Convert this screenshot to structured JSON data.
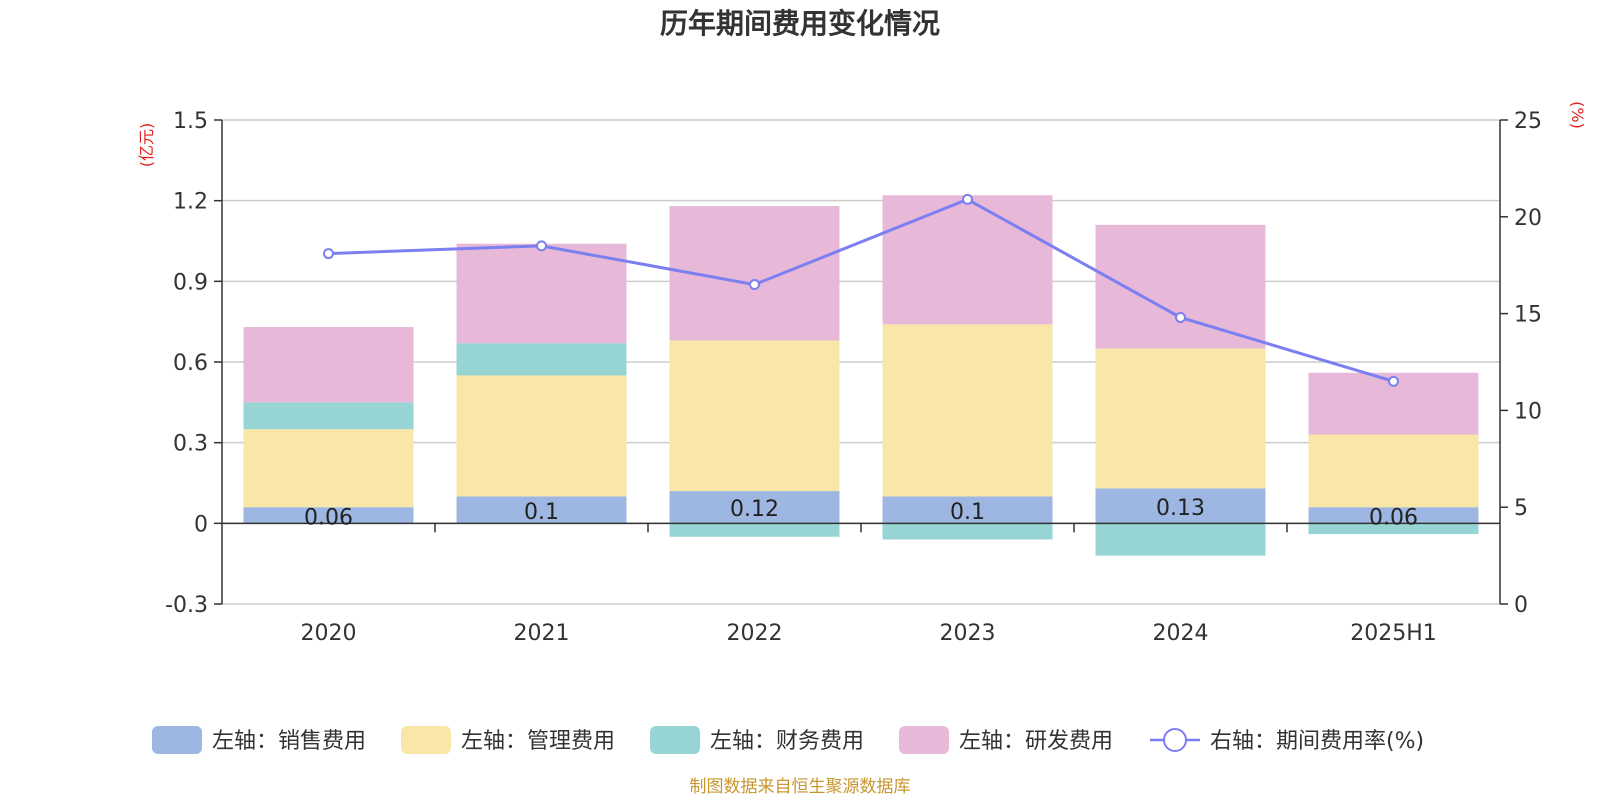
{
  "chart_data": {
    "type": "bar",
    "title": "历年期间费用变化情况",
    "categories": [
      "2020",
      "2021",
      "2022",
      "2023",
      "2024",
      "2025H1"
    ],
    "left_axis": {
      "unit": "(亿元)",
      "ylim": [
        -0.3,
        1.5
      ],
      "ticks": [
        "-0.3",
        "0",
        "0.3",
        "0.6",
        "0.9",
        "1.2",
        "1.5"
      ]
    },
    "right_axis": {
      "unit": "(%)",
      "ylim": [
        0,
        25
      ],
      "ticks": [
        "0",
        "5",
        "10",
        "15",
        "20",
        "25"
      ]
    },
    "series": [
      {
        "name": "左轴：销售费用",
        "axis": "left",
        "kind": "bar",
        "color": "#9db7e2",
        "values": [
          0.06,
          0.1,
          0.12,
          0.1,
          0.13,
          0.06
        ],
        "labels": [
          "0.06",
          "0.1",
          "0.12",
          "0.1",
          "0.13",
          "0.06"
        ]
      },
      {
        "name": "左轴：管理费用",
        "axis": "left",
        "kind": "bar",
        "color": "#f8e7a7",
        "values": [
          0.29,
          0.45,
          0.56,
          0.64,
          0.52,
          0.27
        ]
      },
      {
        "name": "左轴：财务费用",
        "axis": "left",
        "kind": "bar",
        "color": "#97d5d5",
        "values": [
          0.1,
          0.12,
          -0.05,
          -0.06,
          -0.12,
          -0.04
        ]
      },
      {
        "name": "左轴：研发费用",
        "axis": "left",
        "kind": "bar",
        "color": "#e8b8d9",
        "values": [
          0.28,
          0.37,
          0.5,
          0.48,
          0.46,
          0.23
        ]
      },
      {
        "name": "右轴：期间费用率(%)",
        "axis": "right",
        "kind": "line",
        "color": "#7b7ff0",
        "values": [
          18.1,
          18.5,
          16.5,
          20.9,
          14.8,
          11.5
        ]
      }
    ],
    "grid": true,
    "legend_position": "bottom"
  },
  "source_note": "制图数据来自恒生聚源数据库"
}
